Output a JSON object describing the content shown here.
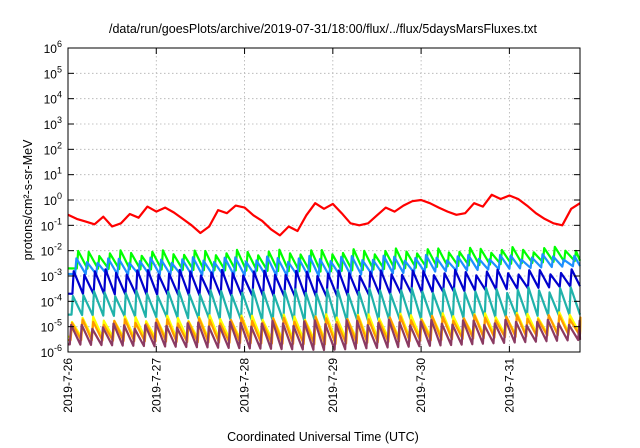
{
  "chart_data": {
    "type": "line",
    "title": "/data/run/goesPlots/archive/2019-07-31/18:00/flux/../flux/5daysMarsFluxes.txt",
    "xlabel": "Coordinated Universal Time (UTC)",
    "ylabel": "protons/cm²-s-sr-MeV",
    "yscale": "log",
    "ylim": [
      1e-06,
      1000000.0
    ],
    "xlim": [
      0,
      5.8
    ],
    "grid": true,
    "x_ticks": [
      {
        "value": 0,
        "label": "2019-7-26"
      },
      {
        "value": 1,
        "label": "2019-7-27"
      },
      {
        "value": 2,
        "label": "2019-7-28"
      },
      {
        "value": 3,
        "label": "2019-7-29"
      },
      {
        "value": 4,
        "label": "2019-7-30"
      },
      {
        "value": 5,
        "label": "2019-7-31"
      }
    ],
    "y_ticks": [
      {
        "value": 1e-06,
        "base": "10",
        "exp": "-6"
      },
      {
        "value": 1e-05,
        "base": "10",
        "exp": "-5"
      },
      {
        "value": 0.0001,
        "base": "10",
        "exp": "-4"
      },
      {
        "value": 0.001,
        "base": "10",
        "exp": "-3"
      },
      {
        "value": 0.01,
        "base": "10",
        "exp": "-2"
      },
      {
        "value": 0.1,
        "base": "10",
        "exp": "-1"
      },
      {
        "value": 1,
        "base": "10",
        "exp": "0"
      },
      {
        "value": 10,
        "base": "10",
        "exp": "1"
      },
      {
        "value": 100,
        "base": "10",
        "exp": "2"
      },
      {
        "value": 1000,
        "base": "10",
        "exp": "3"
      },
      {
        "value": 10000,
        "base": "10",
        "exp": "4"
      },
      {
        "value": 100000,
        "base": "10",
        "exp": "5"
      },
      {
        "value": 1000000,
        "base": "10",
        "exp": "6"
      }
    ],
    "series": [
      {
        "color": "#ff0000",
        "x": [
          0.0,
          0.1,
          0.2,
          0.3,
          0.4,
          0.5,
          0.6,
          0.7,
          0.8,
          0.9,
          1.0,
          1.1,
          1.2,
          1.3,
          1.4,
          1.5,
          1.6,
          1.7,
          1.8,
          1.9,
          2.0,
          2.1,
          2.2,
          2.3,
          2.4,
          2.5,
          2.6,
          2.7,
          2.8,
          2.9,
          3.0,
          3.1,
          3.2,
          3.3,
          3.4,
          3.5,
          3.6,
          3.7,
          3.8,
          3.9,
          4.0,
          4.1,
          4.2,
          4.3,
          4.4,
          4.5,
          4.6,
          4.7,
          4.8,
          4.9,
          5.0,
          5.1,
          5.2,
          5.3,
          5.4,
          5.5,
          5.6,
          5.7,
          5.8
        ],
        "y": [
          0.26,
          0.18,
          0.14,
          0.11,
          0.22,
          0.09,
          0.12,
          0.28,
          0.2,
          0.55,
          0.35,
          0.5,
          0.32,
          0.18,
          0.1,
          0.05,
          0.09,
          0.4,
          0.3,
          0.6,
          0.5,
          0.25,
          0.15,
          0.07,
          0.04,
          0.09,
          0.06,
          0.25,
          0.75,
          0.45,
          0.7,
          0.3,
          0.12,
          0.1,
          0.12,
          0.25,
          0.5,
          0.35,
          0.6,
          0.9,
          1.0,
          0.75,
          0.5,
          0.35,
          0.26,
          0.3,
          0.75,
          0.55,
          1.6,
          1.1,
          1.5,
          1.1,
          0.6,
          0.3,
          0.18,
          0.12,
          0.1,
          0.45,
          0.75
        ]
      },
      {
        "color": "#00ff00",
        "spike_start": 0.1,
        "spike_step": 0.12,
        "y_low": [
          0.002,
          0.0015,
          0.004
        ],
        "y_high": [
          0.008,
          0.009,
          0.012
        ]
      },
      {
        "color": "#1e90ff",
        "spike_start": 0.08,
        "spike_step": 0.12,
        "y_low": [
          0.0012,
          0.001,
          0.0025
        ],
        "y_high": [
          0.004,
          0.005,
          0.006
        ]
      },
      {
        "color": "#0000cd",
        "spike_start": 0.05,
        "spike_step": 0.12,
        "y_low": [
          0.0002,
          0.00015,
          0.0004
        ],
        "y_high": [
          0.0015,
          0.0013,
          0.0015
        ]
      },
      {
        "color": "#20b2aa",
        "spike_start": 0.04,
        "spike_step": 0.12,
        "y_low": [
          3e-05,
          1.5e-05,
          3e-05
        ],
        "y_high": [
          0.0002,
          0.00025,
          0.0003
        ]
      },
      {
        "color": "#ffff00",
        "spike_start": 0.03,
        "spike_step": 0.12,
        "y_low": [
          4e-06,
          3e-06,
          6e-06
        ],
        "y_high": [
          2e-05,
          2.5e-05,
          3e-05
        ]
      },
      {
        "color": "#ff9900",
        "spike_start": 0.03,
        "spike_step": 0.12,
        "y_low": [
          3e-06,
          2e-06,
          5e-06
        ],
        "y_high": [
          1.5e-05,
          2e-05,
          2.5e-05
        ]
      },
      {
        "color": "#8b3a62",
        "spike_start": 0.02,
        "spike_step": 0.12,
        "y_low": [
          2e-06,
          1.2e-06,
          3e-06
        ],
        "y_high": [
          1e-05,
          1.5e-05,
          1.5e-05
        ]
      }
    ]
  }
}
